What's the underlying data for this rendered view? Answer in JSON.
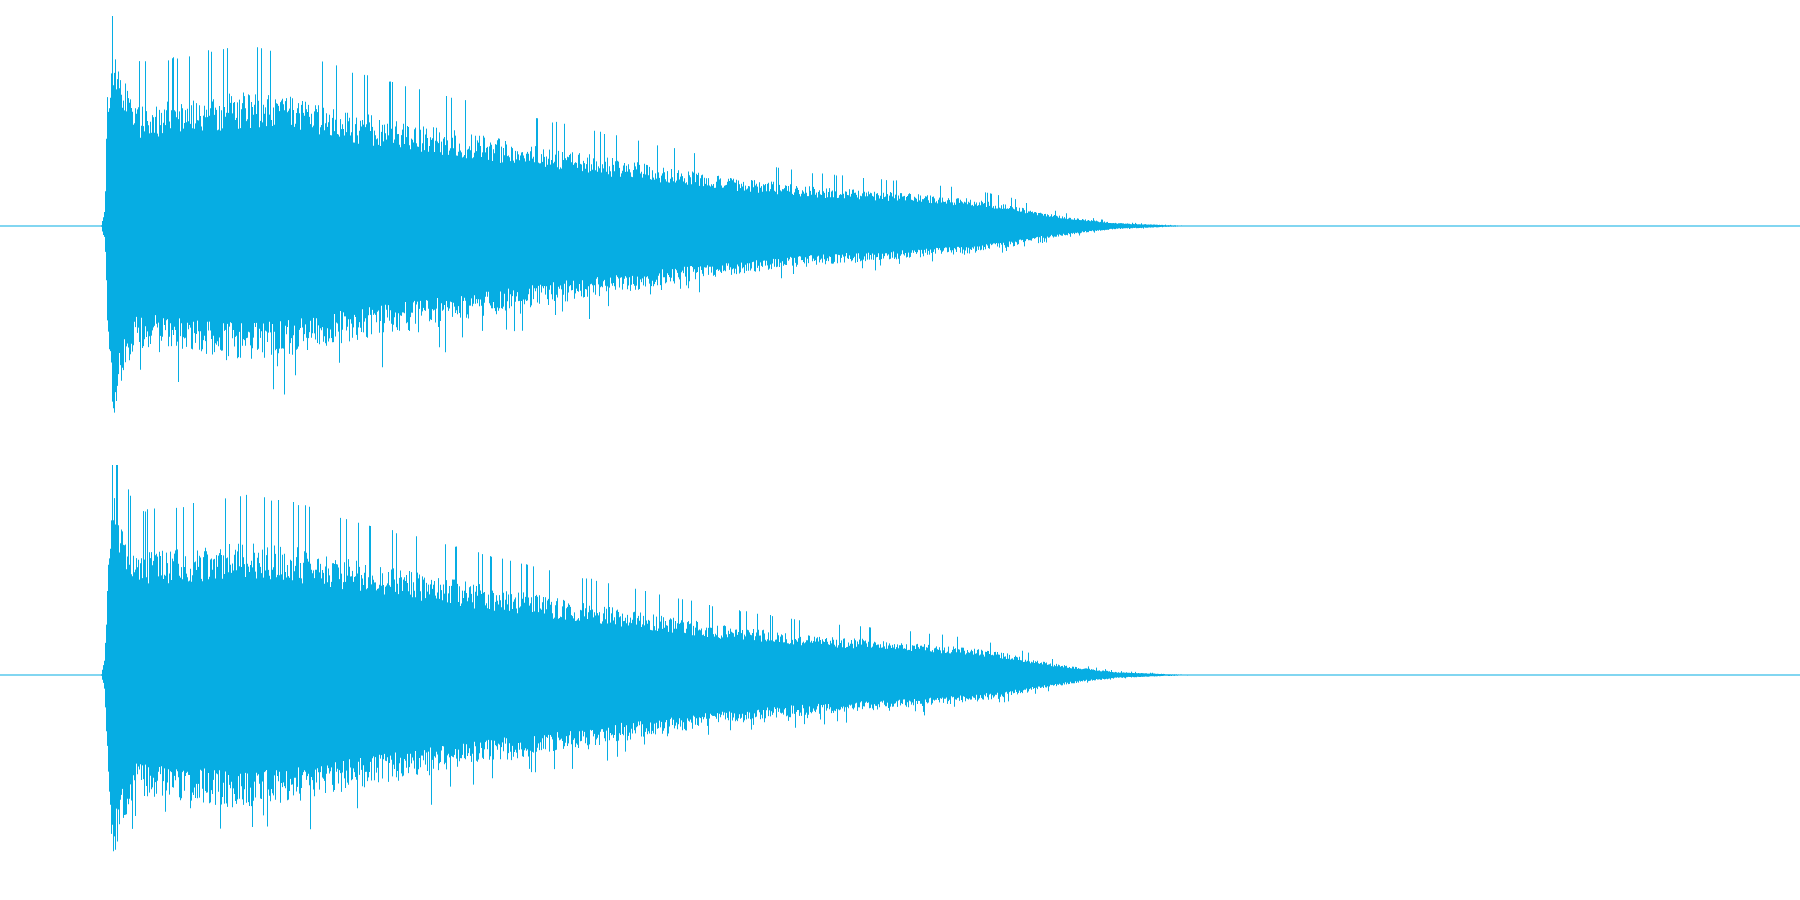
{
  "chart_data": {
    "type": "area",
    "title": "",
    "xlabel": "",
    "ylabel": "",
    "grid": false,
    "legend": "none",
    "color": "#06ade3",
    "ylim": [
      -1,
      1
    ],
    "x_unit": "fraction-of-duration",
    "envelope": [
      {
        "t": 0.0,
        "amp": 0.0
      },
      {
        "t": 0.056,
        "amp": 0.0
      },
      {
        "t": 0.058,
        "amp": 0.08
      },
      {
        "t": 0.06,
        "amp": 0.6
      },
      {
        "t": 0.062,
        "amp": 0.96
      },
      {
        "t": 0.066,
        "amp": 0.78
      },
      {
        "t": 0.075,
        "amp": 0.58
      },
      {
        "t": 0.1,
        "amp": 0.6
      },
      {
        "t": 0.13,
        "amp": 0.64
      },
      {
        "t": 0.16,
        "amp": 0.62
      },
      {
        "t": 0.2,
        "amp": 0.54
      },
      {
        "t": 0.25,
        "amp": 0.46
      },
      {
        "t": 0.3,
        "amp": 0.38
      },
      {
        "t": 0.35,
        "amp": 0.31
      },
      {
        "t": 0.4,
        "amp": 0.24
      },
      {
        "t": 0.45,
        "amp": 0.19
      },
      {
        "t": 0.5,
        "amp": 0.16
      },
      {
        "t": 0.54,
        "amp": 0.13
      },
      {
        "t": 0.562,
        "amp": 0.1
      },
      {
        "t": 0.575,
        "amp": 0.07
      },
      {
        "t": 0.6,
        "amp": 0.035
      },
      {
        "t": 0.62,
        "amp": 0.015
      },
      {
        "t": 0.65,
        "amp": 0.004
      },
      {
        "t": 0.67,
        "amp": 0.0
      },
      {
        "t": 1.0,
        "amp": 0.0
      }
    ],
    "series": [
      {
        "channel": 1
      },
      {
        "channel": 2
      }
    ]
  }
}
